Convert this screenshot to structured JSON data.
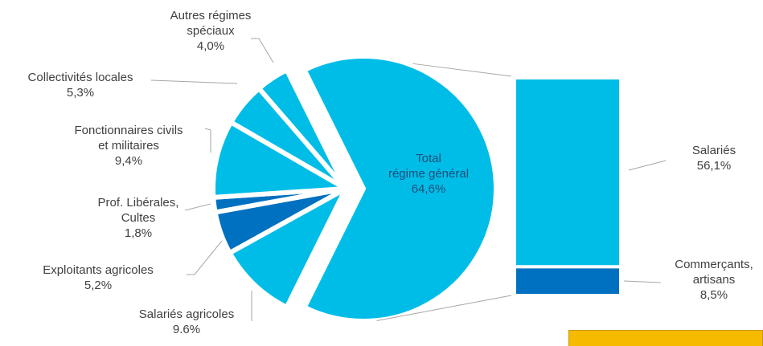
{
  "chart_data": {
    "type": "pie-of-bar",
    "pie": {
      "categories": [
        "Total\nrégime général",
        "Salariés agricoles",
        "Exploitants agricoles",
        "Prof. Libérales,\nCultes",
        "Fonctionnaires civils\net militaires",
        "Collectivités locales",
        "Autres régimes\nspéciaux"
      ],
      "values": [
        64.6,
        9.6,
        5.2,
        1.8,
        9.4,
        5.3,
        4.0
      ],
      "value_labels": [
        "64,6%",
        "9.6%",
        "5,2%",
        "1,8%",
        "9,4%",
        "5,3%",
        "4,0%"
      ],
      "colors": [
        "#00bde8",
        "#00bde8",
        "#0070c0",
        "#0070c0",
        "#00bde8",
        "#00bde8",
        "#00bde8"
      ]
    },
    "bar": {
      "categories": [
        "Salariés",
        "Commerçants,\nartisans"
      ],
      "values": [
        56.1,
        8.5
      ],
      "value_labels": [
        "56,1%",
        "8,5%"
      ],
      "colors": [
        "#00bde8",
        "#0070c0"
      ]
    }
  }
}
